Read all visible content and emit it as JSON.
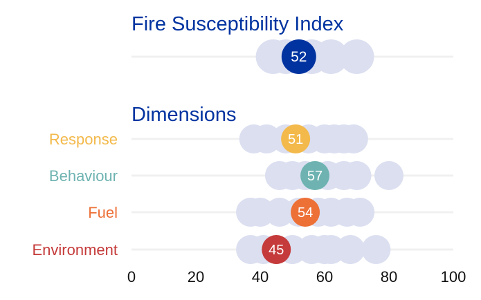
{
  "chart_data": {
    "type": "scatter",
    "title": "Fire Susceptibility Index",
    "section_title": "Dimensions",
    "xlim": [
      0,
      100
    ],
    "xticks": [
      "0",
      "20",
      "40",
      "60",
      "80",
      "100"
    ],
    "background_color": "#dbdff0",
    "rows": [
      {
        "label": "",
        "value": 52,
        "value_label": "52",
        "color": "#0033a0",
        "others": [
          44,
          48,
          56,
          62,
          70
        ],
        "main": true
      },
      {
        "label": "Response",
        "value": 51,
        "value_label": "51",
        "color": "#f3b94a",
        "others": [
          38,
          42,
          48,
          55,
          60,
          63,
          66,
          69
        ]
      },
      {
        "label": "Behaviour",
        "value": 57,
        "value_label": "57",
        "color": "#6eb3b1",
        "others": [
          46,
          50,
          54,
          61,
          66,
          70,
          80
        ]
      },
      {
        "label": "Fuel",
        "value": 54,
        "value_label": "54",
        "color": "#ed7037",
        "others": [
          37,
          40,
          46,
          52,
          58,
          62,
          67,
          71
        ]
      },
      {
        "label": "Environment",
        "value": 45,
        "value_label": "45",
        "color": "#c53a3a",
        "others": [
          37,
          41,
          50,
          56,
          60,
          62,
          68,
          76
        ]
      }
    ]
  }
}
